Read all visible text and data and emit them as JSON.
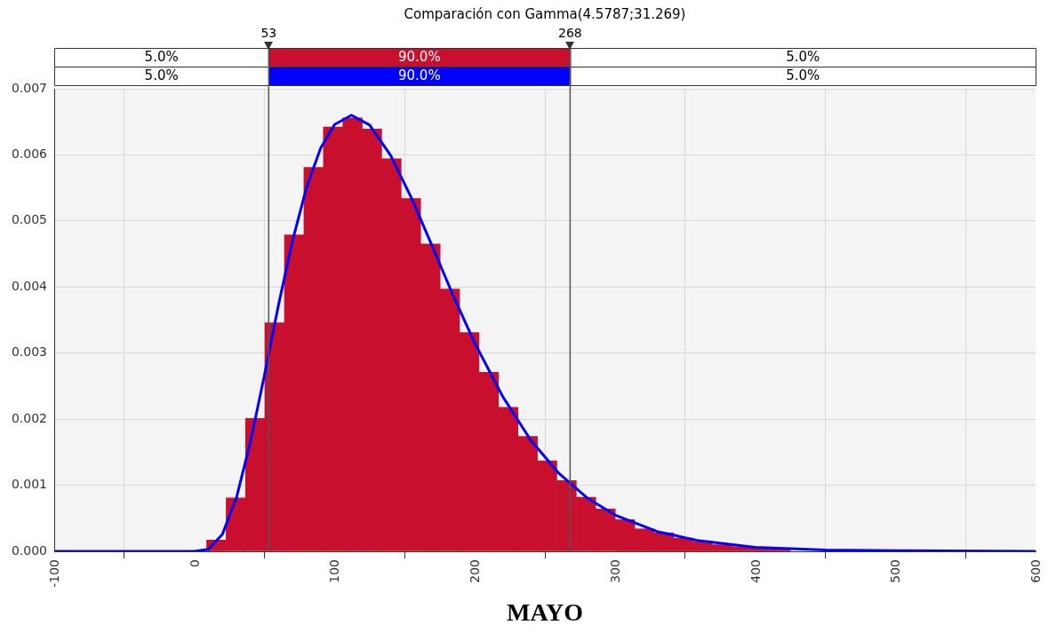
{
  "chart_data": {
    "type": "histogram",
    "title": "Comparación con Gamma(4.5787;31.269)",
    "xlabel": "MAYO",
    "bins": [
      8.7,
      22.6,
      36.5,
      50.3,
      64.2,
      78.1,
      92.0,
      105.9,
      119.7,
      133.6,
      147.5,
      161.4,
      175.3,
      189.1,
      203.0,
      216.9,
      230.8,
      244.7,
      258.5,
      272.4,
      286.3,
      300.2,
      314.1,
      327.9,
      341.8,
      355.7,
      369.6,
      383.5,
      397.3,
      411.2,
      425.1,
      439.0,
      452.9
    ],
    "series": [
      {
        "color": "#c8102e",
        "values": [
          0.00017,
          0.00081,
          0.00201,
          0.00346,
          0.00479,
          0.00581,
          0.00642,
          0.00656,
          0.00639,
          0.00594,
          0.00534,
          0.00465,
          0.00397,
          0.00331,
          0.00271,
          0.00218,
          0.00174,
          0.00137,
          0.00107,
          0.00082,
          0.00064,
          0.00048,
          0.00034,
          0.00028,
          0.0002,
          0.00015,
          0.0001,
          7e-05,
          5e-05,
          4e-05,
          null,
          null
        ]
      },
      {
        "type": "line",
        "color": "#0000ff",
        "x": [
          -100,
          0,
          10,
          20,
          30,
          40,
          50,
          60,
          70,
          80,
          90,
          100,
          112,
          125,
          140,
          155,
          170,
          185,
          200,
          220,
          240,
          260,
          280,
          300,
          330,
          360,
          400,
          450,
          500,
          600
        ],
        "values": [
          0,
          0,
          3e-05,
          0.00026,
          0.00081,
          0.00166,
          0.00267,
          0.00373,
          0.0047,
          0.00551,
          0.0061,
          0.00646,
          0.0066,
          0.00645,
          0.00599,
          0.00534,
          0.0046,
          0.00385,
          0.00315,
          0.00234,
          0.00168,
          0.00118,
          0.00081,
          0.00055,
          0.0003,
          0.00016,
          6e-05,
          2e-05,
          1e-05,
          0
        ]
      }
    ],
    "ref_lines": [
      {
        "axis": "x",
        "value": 53,
        "label": "53",
        "color": "#555555"
      },
      {
        "axis": "x",
        "value": 268,
        "label": "268",
        "color": "#555555"
      }
    ],
    "annotations": [
      "5.0%",
      "90.0%",
      "5.0%",
      "5.0%",
      "90.0%",
      "5.0%"
    ],
    "xlim": [
      -100,
      600
    ],
    "xticks": [
      -100,
      0,
      100,
      200,
      300,
      400,
      500,
      600
    ],
    "ylim": [
      0,
      0.007
    ],
    "yticks": [
      {
        "value": 0,
        "label": "0.000"
      },
      {
        "value": 0.001,
        "label": "0.001"
      },
      {
        "value": 0.002,
        "label": "0.002"
      },
      {
        "value": 0.003,
        "label": "0.003"
      },
      {
        "value": 0.004,
        "label": "0.004"
      },
      {
        "value": 0.005,
        "label": "0.005"
      },
      {
        "value": 0.006,
        "label": "0.006"
      },
      {
        "value": 0.007,
        "label": "0.007"
      }
    ],
    "grid": true,
    "legend": false,
    "marker": "none",
    "line_style": "solid"
  }
}
